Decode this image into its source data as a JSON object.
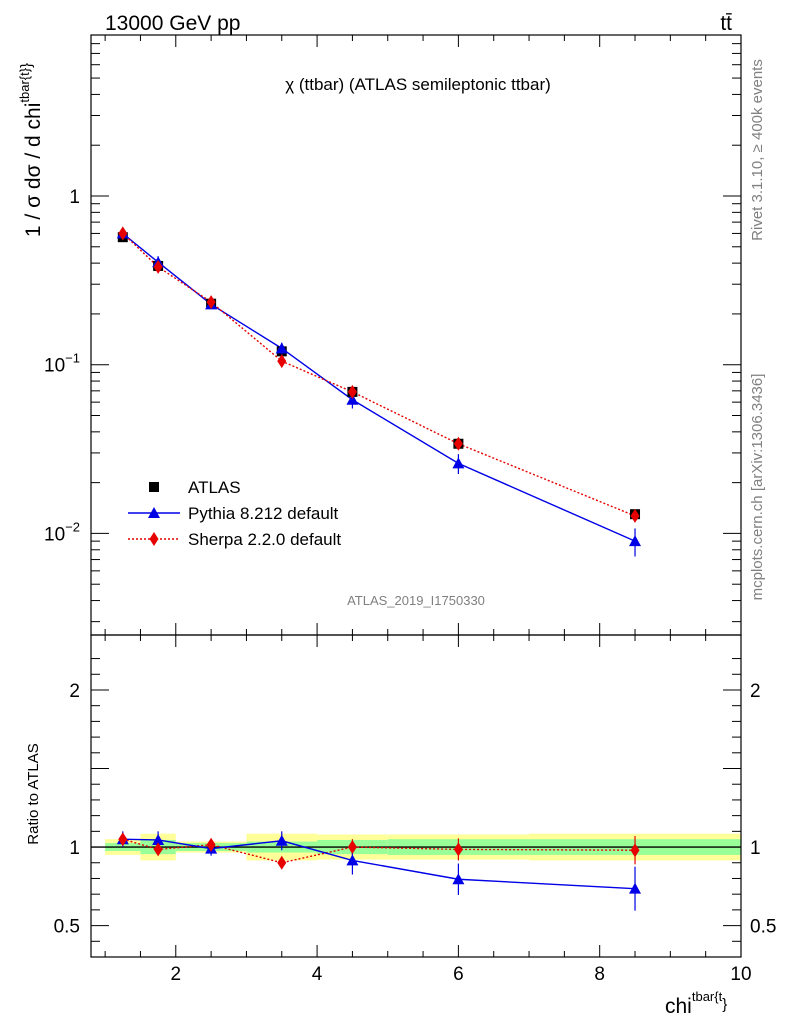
{
  "header": {
    "energy_label": "13000 GeV pp",
    "process_label": "tt̄",
    "plot_title": "χ (ttbar) (ATLAS semileptonic ttbar)",
    "analysis_id": "ATLAS_2019_I1750330"
  },
  "side_text": {
    "rivet": "Rivet 3.1.10, ≥ 400k events",
    "source": "mcplots.cern.ch [arXiv:1306.3436]"
  },
  "axes": {
    "main_ylabel": "1 / σ dσ / d chi",
    "main_ylabel_sup": "tbar{t}",
    "main_ylabel_tail": "}",
    "ratio_ylabel": "Ratio to ATLAS",
    "xlabel": "chi",
    "xlabel_sup": "tbar{t",
    "xlabel_tail": "}",
    "main_yticks": [
      {
        "value": 1,
        "base": "1",
        "exp": ""
      },
      {
        "value": 0.1,
        "base": "10",
        "exp": "−1"
      },
      {
        "value": 0.01,
        "base": "10",
        "exp": "−2"
      }
    ],
    "xticks": [
      2,
      4,
      6,
      8,
      10
    ],
    "ratio_yticks": [
      "2",
      "1",
      "0.5"
    ]
  },
  "legend": [
    {
      "label": "ATLAS"
    },
    {
      "label": "Pythia 8.212 default"
    },
    {
      "label": "Sherpa 2.2.0 default"
    }
  ],
  "colors": {
    "data": "#000000",
    "pythia": "#0000e6",
    "sherpa": "#e60000",
    "band_inner": "#99ff99",
    "band_outer": "#ffff99"
  },
  "chart_data": {
    "type": "line",
    "xlim": [
      0.8,
      10
    ],
    "ylim": [
      0.0025,
      9
    ],
    "yscale": "log",
    "ratio_ylim": [
      0.3,
      2.35
    ],
    "bins": [
      [
        1,
        1.5
      ],
      [
        1.5,
        2
      ],
      [
        2,
        3
      ],
      [
        3,
        4
      ],
      [
        4,
        5
      ],
      [
        5,
        7
      ],
      [
        7,
        10
      ]
    ],
    "x": [
      1.25,
      1.75,
      2.5,
      3.5,
      4.5,
      6,
      8.5
    ],
    "series": [
      {
        "name": "ATLAS",
        "values": [
          0.57,
          0.385,
          0.23,
          0.12,
          0.069,
          0.034,
          0.013
        ]
      },
      {
        "name": "Pythia 8.212 default",
        "values": [
          0.6,
          0.405,
          0.228,
          0.125,
          0.062,
          0.026,
          0.009
        ],
        "err_low": [
          0.02,
          0.035,
          0.01,
          0.01,
          0.007,
          0.0035,
          0.0017
        ],
        "err_high": [
          0.02,
          0.035,
          0.01,
          0.01,
          0.007,
          0.0035,
          0.0017
        ]
      },
      {
        "name": "Sherpa 2.2.0 default",
        "values": [
          0.6,
          0.38,
          0.235,
          0.105,
          0.069,
          0.034,
          0.0127
        ]
      }
    ],
    "ratio": {
      "pythia": [
        1.05,
        1.045,
        0.99,
        1.04,
        0.915,
        0.795,
        0.735
      ],
      "pythia_err": [
        0.05,
        0.055,
        0.045,
        0.06,
        0.09,
        0.1,
        0.14
      ],
      "sherpa": [
        1.05,
        0.985,
        1.015,
        0.9,
        1.0,
        0.985,
        0.98
      ],
      "sherpa_err": [
        0.015,
        0.015,
        0.02,
        0.03,
        0.05,
        0.07,
        0.09
      ],
      "band_inner": [
        0.025,
        0.045,
        0.025,
        0.035,
        0.045,
        0.05,
        0.05
      ],
      "band_outer": [
        0.05,
        0.085,
        0.035,
        0.085,
        0.08,
        0.08,
        0.085
      ]
    }
  }
}
